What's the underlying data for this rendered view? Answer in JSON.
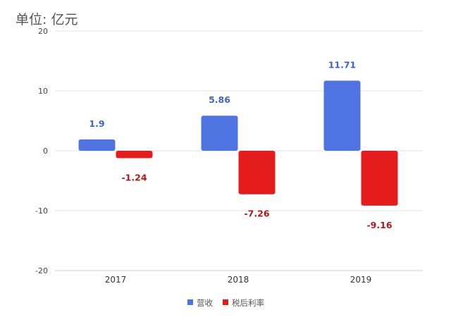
{
  "chart_data": {
    "type": "bar",
    "unit_label": "单位: 亿元",
    "categories": [
      "2017",
      "2018",
      "2019"
    ],
    "series": [
      {
        "name": "营收",
        "color": "#4f73e0",
        "values": [
          1.9,
          5.86,
          11.71
        ],
        "labels": [
          "1.9",
          "5.86",
          "11.71"
        ]
      },
      {
        "name": "税后利率",
        "color": "#e41c1c",
        "values": [
          -1.24,
          -7.26,
          -9.16
        ],
        "labels": [
          "-1.24",
          "-7.26",
          "-9.16"
        ]
      }
    ],
    "ylim": [
      -20,
      20
    ],
    "yticks": [
      -20,
      -10,
      0,
      10,
      20
    ],
    "ytick_labels": [
      "-20",
      "-10",
      "0",
      "10",
      "20"
    ],
    "grid": true,
    "legend_position": "bottom-center"
  }
}
